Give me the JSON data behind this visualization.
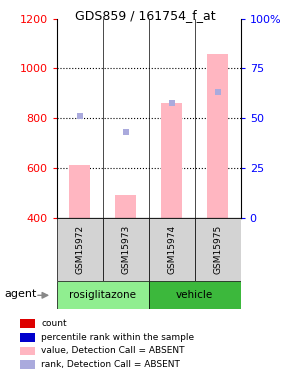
{
  "title": "GDS859 / 161754_f_at",
  "samples": [
    "GSM15972",
    "GSM15973",
    "GSM15974",
    "GSM15975"
  ],
  "groups": [
    "rosiglitazone",
    "rosiglitazone",
    "vehicle",
    "vehicle"
  ],
  "group_colors": {
    "rosiglitazone": "#90EE90",
    "vehicle": "#3CB83C"
  },
  "ylim_left": [
    400,
    1200
  ],
  "ylim_right": [
    0,
    100
  ],
  "yticks_left": [
    400,
    600,
    800,
    1000,
    1200
  ],
  "yticks_right": [
    0,
    25,
    50,
    75,
    100
  ],
  "bar_values": [
    610,
    490,
    860,
    1060
  ],
  "bar_color_absent": "#FFB6C1",
  "rank_marker_vals": [
    810,
    745,
    862,
    905
  ],
  "rank_color_absent": "#AAAADD",
  "background_color": "#ffffff",
  "legend_items": [
    {
      "label": "count",
      "color": "#DD0000"
    },
    {
      "label": "percentile rank within the sample",
      "color": "#0000CC"
    },
    {
      "label": "value, Detection Call = ABSENT",
      "color": "#FFB6C1"
    },
    {
      "label": "rank, Detection Call = ABSENT",
      "color": "#AAAADD"
    }
  ],
  "agent_label": "agent",
  "grid_lines": [
    600,
    800,
    1000
  ],
  "rosiglitazone_lighter": "#AAFFAA",
  "vehicle_darker": "#55CC55"
}
